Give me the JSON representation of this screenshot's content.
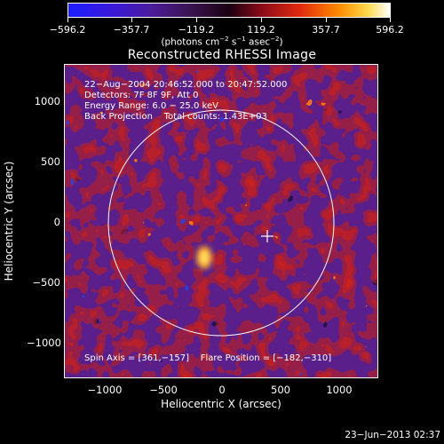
{
  "colorbar": {
    "ticks": [
      "−596.2",
      "−357.7",
      "−119.2",
      "119.2",
      "357.7",
      "596.2"
    ],
    "units_main": "(photons cm",
    "units_sup1": "−2",
    "units_s": " s",
    "units_sup2": "−1",
    "units_asec": " asec",
    "units_sup3": "−2",
    "units_close": ")"
  },
  "title": "Reconstructed RHESSI Image",
  "info": {
    "time_range": "22−Aug−2004 20:46:52.000 to 20:47:52.000",
    "detectors": "Detectors: 7F 8F 9F, Att 0",
    "energy": "Energy Range: 6.0 − 25.0 keV",
    "method": "Back Projection    Total counts: 1.43E+03",
    "spin_flare": "Spin Axis = [361,−157]    Flare Position = [−182,−310]"
  },
  "axes": {
    "xlabel": "Heliocentric X (arcsec)",
    "ylabel": "Heliocentric Y (arcsec)",
    "xticks": [
      "−1000",
      "−500",
      "0",
      "500",
      "1000"
    ],
    "yticks": [
      "1000",
      "500",
      "0",
      "−500",
      "−1000"
    ]
  },
  "footer": "23−Jun−2013 02:37",
  "colors": {
    "background": "#000000",
    "limb_circle": "#ffffff",
    "image_base": "#5a1f8a"
  }
}
